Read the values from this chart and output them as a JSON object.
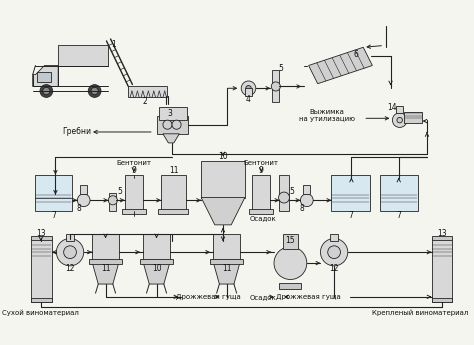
{
  "bg_color": "#f5f5f0",
  "line_color": "#222222",
  "text_color": "#111111",
  "figsize": [
    4.74,
    3.45
  ],
  "dpi": 100,
  "labels": {
    "grebni": "Гребни",
    "vyzhimka": "Выжимка\nна утилизацию",
    "bentonit_l": "Бентонит",
    "bentonit_r": "Бентонит",
    "osadok_m": "Осадок",
    "sukhoy": "Сухой виноматериал",
    "krepleniy": "Крепленый виноматериал",
    "drozhzh1": "Дрожжевая гуща",
    "osadok_b": "Осадок",
    "drozhzh2": "Дрожжевая гуща"
  }
}
